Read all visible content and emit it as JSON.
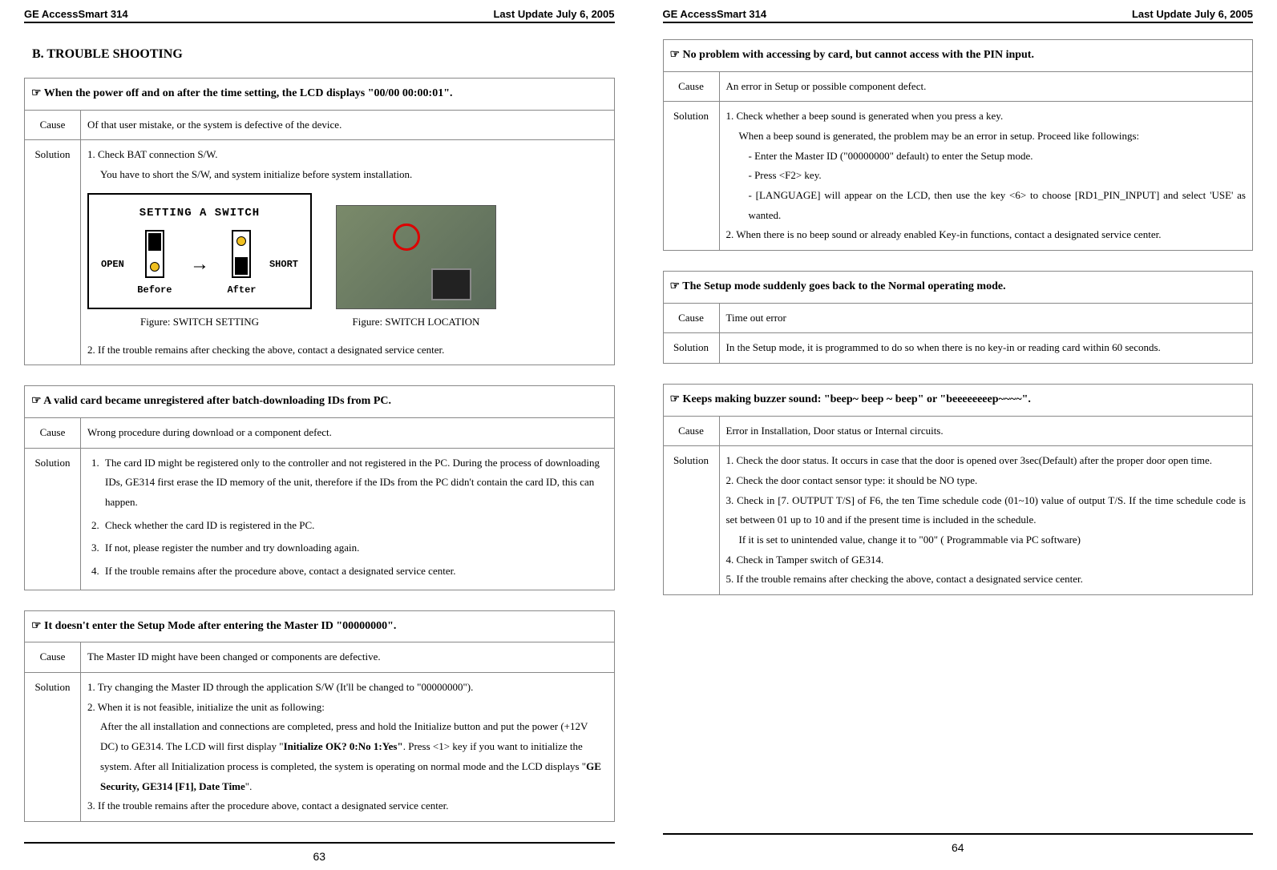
{
  "doc": {
    "product": "GE AccessSmart 314",
    "update": "Last Update July 6, 2005",
    "page_left": "63",
    "page_right": "64"
  },
  "left": {
    "section_title": "B. TROUBLE SHOOTING",
    "t1": {
      "title": "☞ When the power off and on after the time setting, the LCD displays \"00/00 00:00:01\".",
      "cause_label": "Cause",
      "cause": "Of that user mistake, or the system is defective of the device.",
      "solution_label": "Solution",
      "sol_1": "1. Check BAT connection S/W.",
      "sol_1b": "You have to short the S/W, and system initialize before system installation.",
      "switch_title": "SETTING A SWITCH",
      "open": "OPEN",
      "short": "SHORT",
      "before": "Before",
      "after": "After",
      "fig1": "Figure: SWITCH SETTING",
      "fig2": "Figure: SWITCH LOCATION",
      "sol_2": "2. If the trouble remains after checking the above, contact a designated service center."
    },
    "t2": {
      "title": "☞ A valid card became unregistered after batch-downloading IDs from PC.",
      "cause_label": "Cause",
      "cause": "Wrong procedure during download or a component defect.",
      "solution_label": "Solution",
      "s1": "The card ID might be registered only to the controller and not registered in the PC. During the process of downloading IDs, GE314 first erase the ID memory of the unit, therefore if the IDs from the PC didn't contain the card ID, this can happen.",
      "s2": "Check whether the card ID is registered in the PC.",
      "s3": "If not, please register the number and try downloading again.",
      "s4": "If the trouble remains after the procedure above, contact a designated service center."
    },
    "t3": {
      "title": "☞ It doesn't enter the Setup Mode after entering the Master ID \"00000000\".",
      "cause_label": "Cause",
      "cause": "The Master ID might have been changed or components are defective.",
      "solution_label": "Solution",
      "s1": "1. Try changing the Master ID through the application S/W (It'll be changed to \"00000000\").",
      "s2": "2. When it is not feasible, initialize the unit as following:",
      "s2b_a": "After the all installation and connections are completed, press and hold the Initialize button and put the power (+12V DC) to GE314. The LCD will first display \"",
      "s2b_bold1": "Initialize OK? 0:No 1:Yes\"",
      "s2b_c": ". Press <1> key if you want to initialize the system. After all Initialization process is completed, the system is operating on normal mode and the LCD displays \"",
      "s2b_bold2": "GE Security, GE314 [F1], Date Time",
      "s2b_end": "\".",
      "s3": "3. If the trouble remains after the procedure above, contact a designated service center."
    }
  },
  "right": {
    "t4": {
      "title": "☞ No problem with accessing by card, but cannot access with the PIN input.",
      "cause_label": "Cause",
      "cause": "An error in Setup or possible component defect.",
      "solution_label": "Solution",
      "s1": "1. Check whether a beep sound is generated when you press a key.",
      "s1a": "When a beep sound is generated, the problem may be an error in setup. Proceed like followings:",
      "s1b": "- Enter the Master ID (\"00000000\" default) to enter the Setup mode.",
      "s1c": "- Press <F2> key.",
      "s1d": "- [LANGUAGE] will appear on the LCD, then use the key <6> to choose [RD1_PIN_INPUT] and select 'USE' as wanted.",
      "s2": "2. When there is no beep sound or already enabled Key-in functions, contact a designated service center."
    },
    "t5": {
      "title": "☞ The Setup mode suddenly goes back to the Normal operating mode.",
      "cause_label": "Cause",
      "cause": "Time out error",
      "solution_label": "Solution",
      "sol": "In the Setup mode, it is programmed to do so when there is no key-in or reading card within 60 seconds."
    },
    "t6": {
      "title": "☞ Keeps making buzzer sound: \"beep~ beep ~ beep\" or \"beeeeeeeep~~~~\".",
      "cause_label": "Cause",
      "cause": "Error in Installation, Door status or Internal circuits.",
      "solution_label": "Solution",
      "s1": "1. Check the door status. It occurs in case that the door is opened over 3sec(Default) after the proper door open time.",
      "s2": "2. Check the door contact sensor type: it should be NO type.",
      "s3": "3. Check in [7. OUTPUT T/S] of F6, the ten Time schedule code (01~10) value of output T/S. If the time schedule code is set between 01 up to 10 and if the present time is included in the schedule.",
      "s3b": "If it is set to unintended value, change it to \"00\" ( Programmable via PC software)",
      "s4": "4. Check in Tamper switch of GE314.",
      "s5": "5. If the trouble remains after checking the above, contact a designated service center."
    }
  }
}
